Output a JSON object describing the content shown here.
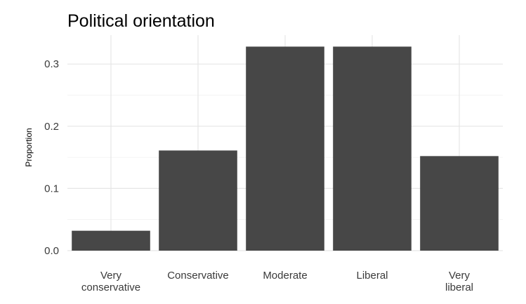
{
  "chart_data": {
    "type": "bar",
    "title": "Political orientation",
    "xlabel": "",
    "ylabel": "Proportion",
    "categories": [
      [
        "Very",
        "conservative"
      ],
      [
        "Conservative"
      ],
      [
        "Moderate"
      ],
      [
        "Liberal"
      ],
      [
        "Very",
        "liberal"
      ]
    ],
    "values": [
      0.032,
      0.161,
      0.328,
      0.328,
      0.152
    ],
    "ylim": [
      0,
      0.335
    ],
    "yticks": [
      0.0,
      0.1,
      0.2,
      0.3
    ],
    "ytick_labels": [
      "0.0",
      "0.1",
      "0.2",
      "0.3"
    ],
    "grid": true,
    "bar_color": "#474747",
    "grid_color": "#e6e6e6"
  }
}
